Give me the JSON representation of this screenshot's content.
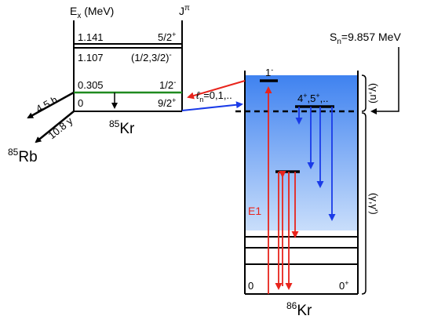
{
  "kr85": {
    "ex_header": "E",
    "ex_header_sub": "x",
    "ex_header_unit": " (MeV)",
    "j_header": "J",
    "j_header_sup": "π",
    "levels": [
      {
        "energy": "1.141",
        "spin": "5/2",
        "parity": "+"
      },
      {
        "energy": "1.107",
        "spin": "(1/2,3/2)",
        "parity": "-"
      },
      {
        "energy": "0.305",
        "spin": "1/2",
        "parity": "-"
      },
      {
        "energy": "0",
        "spin": "9/2",
        "parity": "+"
      }
    ],
    "nucleus_mass": "85",
    "nucleus_symbol": "Kr",
    "decay_product_mass": "85",
    "decay_product_symbol": "Rb",
    "halflife_excited": "4.5 h",
    "halflife_ground": "10.8 y"
  },
  "kr86": {
    "nucleus_mass": "86",
    "nucleus_symbol": "Kr",
    "ground_label": "0",
    "ground_spin": "0",
    "ground_parity": "+",
    "level_1_spin": "1",
    "level_1_parity": "-",
    "high_spin_label": "4",
    "high_spin_parity1": "+",
    "high_spin_sep": ",5",
    "high_spin_parity2": "+",
    "high_spin_end": ",..",
    "e1_label": "E1"
  },
  "neutron": {
    "ell_label": "ℓ",
    "ell_sub": "n",
    "ell_values": "=0,1,..",
    "sn_label": "S",
    "sn_sub": "n",
    "sn_value": "=9.857 MeV"
  },
  "reactions": {
    "gamma_n": "(γ,n)",
    "gamma_gamma": "(γ,γ')"
  },
  "colors": {
    "red": "#e8241c",
    "blue": "#1a3be8",
    "green": "#1f8a1f",
    "gradient_top": "#3f82f0",
    "gradient_bottom": "#c9defb"
  }
}
